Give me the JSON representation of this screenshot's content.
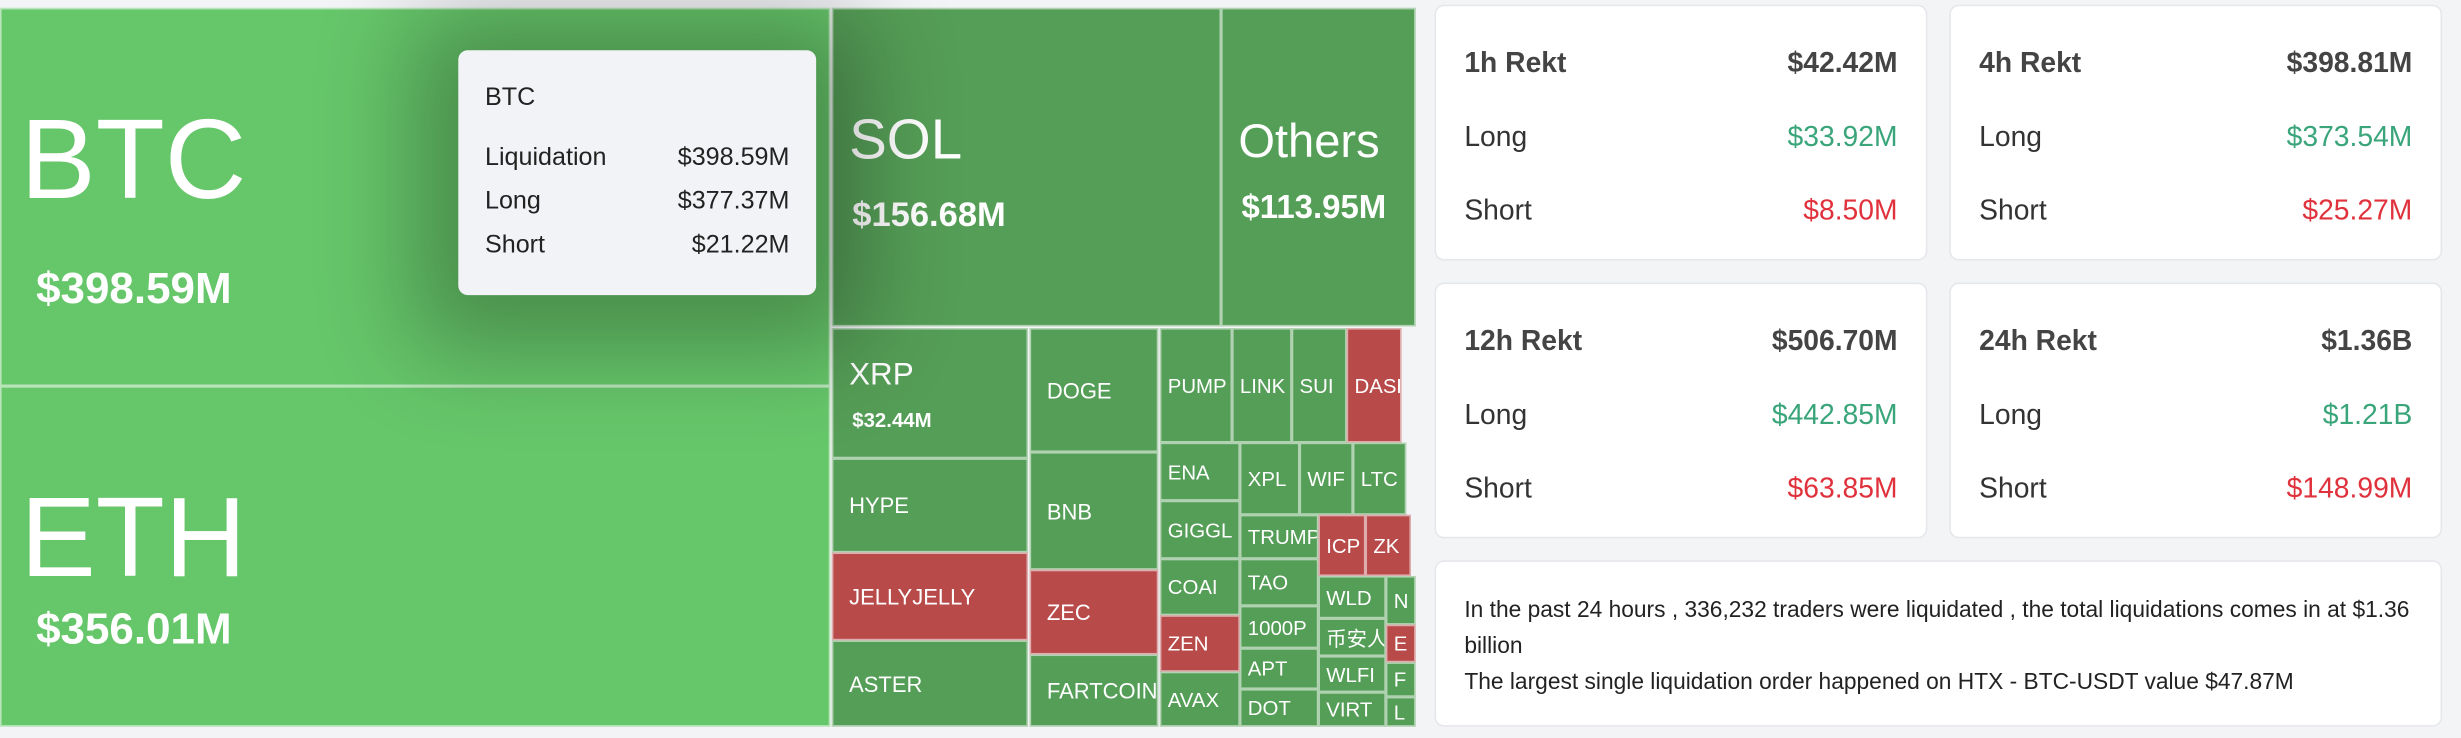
{
  "tiles": [
    {
      "label": "BTC",
      "value": "$398.59M"
    },
    {
      "label": "ETH",
      "value": "$356.01M"
    },
    {
      "label": "SOL",
      "value": "$156.68M"
    },
    {
      "label": "Others",
      "value": "$113.95M"
    },
    {
      "label": "XRP",
      "value": "$32.44M"
    },
    {
      "label": "HYPE"
    },
    {
      "label": "JELLYJELLY"
    },
    {
      "label": "ASTER"
    },
    {
      "label": "DOGE"
    },
    {
      "label": "BNB"
    },
    {
      "label": "ZEC"
    },
    {
      "label": "FARTCOIN"
    },
    {
      "label": "PUMP"
    },
    {
      "label": "LINK"
    },
    {
      "label": "SUI"
    },
    {
      "label": "DASH"
    },
    {
      "label": "ENA"
    },
    {
      "label": "GIGGL"
    },
    {
      "label": "COAI"
    },
    {
      "label": "ZEN"
    },
    {
      "label": "AVAX"
    },
    {
      "label": "XPL"
    },
    {
      "label": "WIF"
    },
    {
      "label": "LTC"
    },
    {
      "label": "TRUMP"
    },
    {
      "label": "TAO"
    },
    {
      "label": "1000P"
    },
    {
      "label": "APT"
    },
    {
      "label": "DOT"
    },
    {
      "label": "ICP"
    },
    {
      "label": "ZK"
    },
    {
      "label": "WLD"
    },
    {
      "label": "币安人生"
    },
    {
      "label": "WLFI"
    },
    {
      "label": "VIRT"
    },
    {
      "label": "N"
    },
    {
      "label": "E"
    },
    {
      "label": "F"
    },
    {
      "label": "L"
    }
  ],
  "tooltip": {
    "title": "BTC",
    "rows": [
      [
        "Liquidation",
        "$398.59M"
      ],
      [
        "Long",
        "$377.37M"
      ],
      [
        "Short",
        "$21.22M"
      ]
    ]
  },
  "cards": [
    {
      "title": "1h Rekt",
      "total": "$42.42M",
      "long_label": "Long",
      "long": "$33.92M",
      "short_label": "Short",
      "short": "$8.50M"
    },
    {
      "title": "4h Rekt",
      "total": "$398.81M",
      "long_label": "Long",
      "long": "$373.54M",
      "short_label": "Short",
      "short": "$25.27M"
    },
    {
      "title": "12h Rekt",
      "total": "$506.70M",
      "long_label": "Long",
      "long": "$442.85M",
      "short_label": "Short",
      "short": "$63.85M"
    },
    {
      "title": "24h Rekt",
      "total": "$1.36B",
      "long_label": "Long",
      "long": "$1.21B",
      "short_label": "Short",
      "short": "$148.99M"
    }
  ],
  "summary": [
    "In the past 24 hours , 336,232 traders were liquidated , the total liquidations comes in at $1.36 billion",
    "The largest single liquidation order happened on HTX - BTC-USDT value $47.87M"
  ]
}
